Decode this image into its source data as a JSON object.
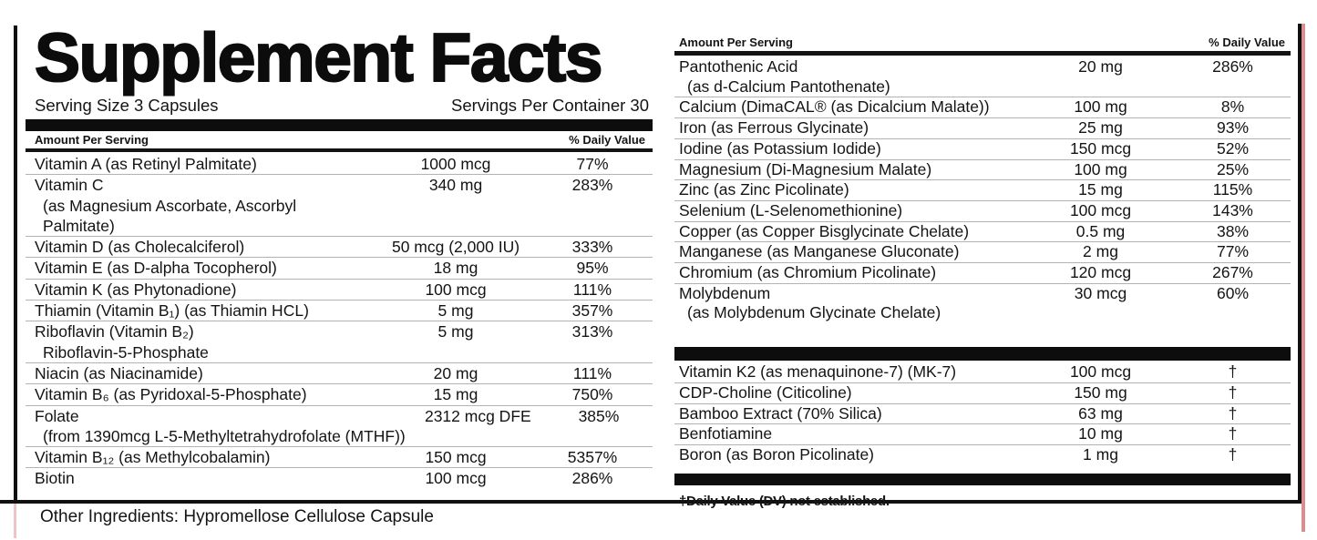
{
  "title": "Supplement Facts",
  "serving": {
    "size": "Serving Size 3 Capsules",
    "per_container": "Servings Per Container 30"
  },
  "headers": {
    "amount": "Amount Per Serving",
    "daily_value": "% Daily Value"
  },
  "left_rows": [
    {
      "name": "Vitamin A (as Retinyl Palmitate)",
      "amount": "1000 mcg",
      "dv": "77%"
    },
    {
      "name": "Vitamin C",
      "sub": [
        "(as Magnesium Ascorbate, Ascorbyl",
        "Palmitate)"
      ],
      "amount": "340 mg",
      "dv": "283%"
    },
    {
      "name": "Vitamin D (as Cholecalciferol)",
      "amount": "50 mcg (2,000 IU)",
      "dv": "333%"
    },
    {
      "name": "Vitamin E (as D-alpha Tocopherol)",
      "amount": "18 mg",
      "dv": "95%"
    },
    {
      "name": "Vitamin K (as Phytonadione)",
      "amount": "100 mcg",
      "dv": "111%"
    },
    {
      "name": "Thiamin (Vitamin B₁) (as Thiamin HCL)",
      "amount": "5 mg",
      "dv": "357%"
    },
    {
      "name": "Riboflavin (Vitamin B₂)",
      "sub": [
        "Riboflavin-5-Phosphate"
      ],
      "amount": "5 mg",
      "dv": "313%"
    },
    {
      "name": "Niacin (as Niacinamide)",
      "amount": "20 mg",
      "dv": "111%"
    },
    {
      "name": "Vitamin B₆ (as Pyridoxal-5-Phosphate)",
      "amount": "15 mg",
      "dv": "750%"
    },
    {
      "name": "Folate",
      "sub": [
        "(from 1390mcg L-5-Methyltetrahydrofolate (MTHF))"
      ],
      "amount": "2312 mcg DFE",
      "dv": "385%"
    },
    {
      "name": "Vitamin B₁₂ (as Methylcobalamin)",
      "amount": "150 mcg",
      "dv": "5357%"
    },
    {
      "name": "Biotin",
      "amount": "100 mcg",
      "dv": "286%"
    }
  ],
  "right_rows_top": [
    {
      "name": "Pantothenic Acid",
      "sub": [
        "(as d-Calcium Pantothenate)"
      ],
      "amount": "20 mg",
      "dv": "286%"
    },
    {
      "name": "Calcium (DimaCAL® (as Dicalcium Malate))",
      "amount": "100 mg",
      "dv": "8%"
    },
    {
      "name": "Iron (as Ferrous Glycinate)",
      "amount": "25 mg",
      "dv": "93%"
    },
    {
      "name": "Iodine (as Potassium Iodide)",
      "amount": "150 mcg",
      "dv": "52%"
    },
    {
      "name": "Magnesium (Di-Magnesium Malate)",
      "amount": "100 mg",
      "dv": "25%"
    },
    {
      "name": "Zinc (as Zinc Picolinate)",
      "amount": "15 mg",
      "dv": "115%"
    },
    {
      "name": "Selenium (L-Selenomethionine)",
      "amount": "100 mcg",
      "dv": "143%"
    },
    {
      "name": "Copper (as Copper Bisglycinate Chelate)",
      "amount": "0.5 mg",
      "dv": "38%"
    },
    {
      "name": "Manganese (as Manganese Gluconate)",
      "amount": "2 mg",
      "dv": "77%"
    },
    {
      "name": "Chromium (as Chromium Picolinate)",
      "amount": "120 mcg",
      "dv": "267%"
    },
    {
      "name": "Molybdenum",
      "sub": [
        "(as Molybdenum Glycinate Chelate)"
      ],
      "amount": "30 mcg",
      "dv": "60%"
    }
  ],
  "right_rows_bottom": [
    {
      "name": "Vitamin K2 (as menaquinone-7) (MK-7)",
      "amount": "100 mcg",
      "dv": "†"
    },
    {
      "name": "CDP-Choline (Citicoline)",
      "amount": "150 mg",
      "dv": "†"
    },
    {
      "name": "Bamboo Extract (70% Silica)",
      "amount": "63 mg",
      "dv": "†"
    },
    {
      "name": "Benfotiamine",
      "amount": "10 mg",
      "dv": "†"
    },
    {
      "name": "Boron (as Boron Picolinate)",
      "amount": "1 mg",
      "dv": "†"
    }
  ],
  "footnote": "†Daily Value (DV) not established.",
  "other_ingredients": "Other Ingredients: Hypromellose Cellulose Capsule",
  "colors": {
    "text_black": "#141414",
    "bar_black": "#0d0d0d",
    "separator_gray": "#b3b3b3",
    "edge_pink": "#d98f8f"
  }
}
